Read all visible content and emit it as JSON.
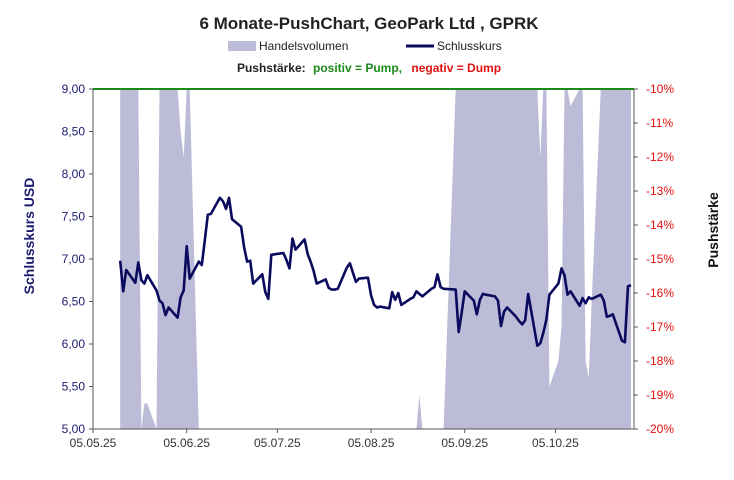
{
  "chart_data": {
    "type": "line",
    "title": "6 Monate-PushChart,  GeoPark Ltd , GPRK",
    "legend": [
      {
        "name": "Handelsvolumen",
        "color": "#bcbcd8",
        "kind": "area"
      },
      {
        "name": "Schlusskurs",
        "color": "#0a0a5e",
        "kind": "line"
      }
    ],
    "subtitle": {
      "prefix": "Pushstärke:",
      "positive": "positiv = Pump,",
      "negative": "negativ = Dump",
      "positive_color": "#1a8a1a",
      "negative_color": "#e01010"
    },
    "ylabel_left": "Schlusskurs USD",
    "ylabel_right": "Pushstärke",
    "ylim_left": [
      5.0,
      9.0
    ],
    "ylim_right": [
      -20,
      -10
    ],
    "yticks_left": [
      "9,00",
      "8,50",
      "8,00",
      "7,50",
      "7,00",
      "6,50",
      "6,00",
      "5,50",
      "5,00"
    ],
    "yticks_right": [
      "-10%",
      "-11%",
      "-12%",
      "-13%",
      "-14%",
      "-15%",
      "-16%",
      "-17%",
      "-18%",
      "-19%",
      "-20%"
    ],
    "x_start": "2025-05-05",
    "x_end": "2025-10-31",
    "xticks": [
      "05.05.25",
      "05.06.25",
      "05.07.25",
      "05.08.25",
      "05.09.25",
      "05.10.25"
    ],
    "xtick_dates": [
      "2025-05-05",
      "2025-06-05",
      "2025-07-05",
      "2025-08-05",
      "2025-09-05",
      "2025-10-05"
    ],
    "zero_line_color": "#1a8a1a",
    "series": [
      {
        "name": "Schlusskurs",
        "color": "#0a0a5e",
        "x": [
          "2025-05-14",
          "2025-05-15",
          "2025-05-16",
          "2025-05-19",
          "2025-05-20",
          "2025-05-21",
          "2025-05-22",
          "2025-05-23",
          "2025-05-26",
          "2025-05-27",
          "2025-05-28",
          "2025-05-29",
          "2025-05-30",
          "2025-06-02",
          "2025-06-03",
          "2025-06-04",
          "2025-06-05",
          "2025-06-06",
          "2025-06-09",
          "2025-06-10",
          "2025-06-11",
          "2025-06-12",
          "2025-06-13",
          "2025-06-16",
          "2025-06-17",
          "2025-06-18",
          "2025-06-19",
          "2025-06-20",
          "2025-06-23",
          "2025-06-24",
          "2025-06-25",
          "2025-06-26",
          "2025-06-27",
          "2025-06-30",
          "2025-07-01",
          "2025-07-02",
          "2025-07-03",
          "2025-07-07",
          "2025-07-08",
          "2025-07-09",
          "2025-07-10",
          "2025-07-11",
          "2025-07-14",
          "2025-07-15",
          "2025-07-16",
          "2025-07-17",
          "2025-07-18",
          "2025-07-21",
          "2025-07-22",
          "2025-07-23",
          "2025-07-24",
          "2025-07-25",
          "2025-07-28",
          "2025-07-29",
          "2025-07-30",
          "2025-07-31",
          "2025-08-01",
          "2025-08-04",
          "2025-08-05",
          "2025-08-06",
          "2025-08-07",
          "2025-08-08",
          "2025-08-11",
          "2025-08-12",
          "2025-08-13",
          "2025-08-14",
          "2025-08-15",
          "2025-08-18",
          "2025-08-19",
          "2025-08-20",
          "2025-08-21",
          "2025-08-22",
          "2025-08-25",
          "2025-08-26",
          "2025-08-27",
          "2025-08-28",
          "2025-08-29",
          "2025-09-02",
          "2025-09-03",
          "2025-09-04",
          "2025-09-05",
          "2025-09-08",
          "2025-09-09",
          "2025-09-10",
          "2025-09-11",
          "2025-09-12",
          "2025-09-15",
          "2025-09-16",
          "2025-09-17",
          "2025-09-18",
          "2025-09-19",
          "2025-09-22",
          "2025-09-23",
          "2025-09-24",
          "2025-09-25",
          "2025-09-26",
          "2025-09-29",
          "2025-09-30",
          "2025-10-01",
          "2025-10-02",
          "2025-10-03",
          "2025-10-06",
          "2025-10-07",
          "2025-10-08",
          "2025-10-09",
          "2025-10-10",
          "2025-10-13",
          "2025-10-14",
          "2025-10-15",
          "2025-10-16",
          "2025-10-17",
          "2025-10-20",
          "2025-10-21",
          "2025-10-22",
          "2025-10-23",
          "2025-10-24",
          "2025-10-27",
          "2025-10-28",
          "2025-10-29",
          "2025-10-30"
        ],
        "y": [
          6.98,
          6.62,
          6.87,
          6.72,
          6.96,
          6.75,
          6.71,
          6.81,
          6.63,
          6.51,
          6.48,
          6.34,
          6.43,
          6.31,
          6.55,
          6.63,
          7.15,
          6.77,
          6.97,
          6.93,
          7.22,
          7.52,
          7.53,
          7.72,
          7.68,
          7.59,
          7.72,
          7.47,
          7.38,
          7.14,
          6.97,
          6.98,
          6.71,
          6.82,
          6.61,
          6.53,
          7.05,
          7.07,
          6.99,
          6.89,
          7.24,
          7.11,
          7.23,
          7.06,
          6.97,
          6.86,
          6.71,
          6.76,
          6.66,
          6.64,
          6.64,
          6.65,
          6.9,
          6.95,
          6.84,
          6.73,
          6.77,
          6.78,
          6.57,
          6.46,
          6.43,
          6.44,
          6.42,
          6.61,
          6.52,
          6.6,
          6.46,
          6.53,
          6.55,
          6.62,
          6.59,
          6.56,
          6.65,
          6.67,
          6.82,
          6.67,
          6.65,
          6.64,
          6.14,
          6.37,
          6.62,
          6.51,
          6.35,
          6.52,
          6.59,
          6.58,
          6.56,
          6.51,
          6.21,
          6.38,
          6.43,
          6.32,
          6.27,
          6.23,
          6.28,
          6.59,
          5.98,
          6.01,
          6.13,
          6.29,
          6.58,
          6.71,
          6.89,
          6.81,
          6.58,
          6.62,
          6.45,
          6.54,
          6.48,
          6.55,
          6.53,
          6.58,
          6.51,
          6.32,
          6.33,
          6.35,
          6.04,
          6.02,
          6.68,
          6.69
        ]
      },
      {
        "name": "Handelsvolumen",
        "color": "#bcbcd8",
        "x": [
          "2025-05-14",
          "2025-05-15",
          "2025-05-16",
          "2025-05-19",
          "2025-05-20",
          "2025-05-21",
          "2025-05-22",
          "2025-05-23",
          "2025-05-26",
          "2025-05-27",
          "2025-05-28",
          "2025-05-29",
          "2025-05-30",
          "2025-06-02",
          "2025-06-03",
          "2025-06-04",
          "2025-06-05",
          "2025-06-06",
          "2025-06-09",
          "2025-06-10",
          "2025-06-11",
          "2025-06-12",
          "2025-06-13",
          "2025-06-16",
          "2025-06-17",
          "2025-06-18",
          "2025-06-19",
          "2025-06-20",
          "2025-06-23",
          "2025-06-24",
          "2025-06-25",
          "2025-06-26",
          "2025-06-27",
          "2025-06-30",
          "2025-07-01",
          "2025-07-02",
          "2025-07-03",
          "2025-07-07",
          "2025-07-08",
          "2025-07-09",
          "2025-07-10",
          "2025-07-11",
          "2025-07-14",
          "2025-07-15",
          "2025-07-16",
          "2025-07-17",
          "2025-07-18",
          "2025-07-21",
          "2025-07-22",
          "2025-07-23",
          "2025-07-24",
          "2025-07-25",
          "2025-07-28",
          "2025-07-29",
          "2025-07-30",
          "2025-07-31",
          "2025-08-01",
          "2025-08-04",
          "2025-08-05",
          "2025-08-06",
          "2025-08-07",
          "2025-08-08",
          "2025-08-11",
          "2025-08-12",
          "2025-08-13",
          "2025-08-14",
          "2025-08-15",
          "2025-08-18",
          "2025-08-19",
          "2025-08-20",
          "2025-08-21",
          "2025-08-22",
          "2025-08-25",
          "2025-08-26",
          "2025-08-27",
          "2025-08-28",
          "2025-08-29",
          "2025-09-02",
          "2025-09-03",
          "2025-09-04",
          "2025-09-05",
          "2025-09-08",
          "2025-09-09",
          "2025-09-10",
          "2025-09-11",
          "2025-09-12",
          "2025-09-15",
          "2025-09-16",
          "2025-09-17",
          "2025-09-18",
          "2025-09-19",
          "2025-09-22",
          "2025-09-23",
          "2025-09-24",
          "2025-09-25",
          "2025-09-26",
          "2025-09-29",
          "2025-09-30",
          "2025-10-01",
          "2025-10-02",
          "2025-10-03",
          "2025-10-06",
          "2025-10-07",
          "2025-10-08",
          "2025-10-09",
          "2025-10-10",
          "2025-10-13",
          "2025-10-14",
          "2025-10-15",
          "2025-10-16",
          "2025-10-17",
          "2025-10-20",
          "2025-10-21",
          "2025-10-22",
          "2025-10-23",
          "2025-10-24",
          "2025-10-27",
          "2025-10-28",
          "2025-10-29",
          "2025-10-30"
        ],
        "y": [
          9.0,
          9.0,
          9.0,
          9.0,
          9.0,
          5.0,
          5.3,
          5.3,
          5.0,
          9.0,
          9.0,
          9.0,
          9.0,
          9.0,
          8.5,
          8.2,
          9.0,
          9.0,
          5.0,
          5.0,
          5.0,
          5.0,
          5.0,
          5.0,
          5.0,
          5.0,
          5.0,
          5.0,
          5.0,
          5.0,
          5.0,
          5.0,
          5.0,
          5.0,
          5.0,
          5.0,
          5.0,
          5.0,
          5.0,
          5.0,
          5.0,
          5.0,
          5.0,
          5.0,
          5.0,
          5.0,
          5.0,
          5.0,
          5.0,
          5.0,
          5.0,
          5.0,
          5.0,
          5.0,
          5.0,
          5.0,
          5.0,
          5.0,
          5.0,
          5.0,
          5.0,
          5.0,
          5.0,
          5.0,
          5.0,
          5.0,
          5.0,
          5.0,
          5.0,
          5.0,
          5.4,
          5.0,
          5.0,
          5.0,
          5.0,
          5.0,
          5.0,
          9.0,
          9.0,
          9.0,
          9.0,
          9.0,
          9.0,
          9.0,
          9.0,
          9.0,
          9.0,
          9.0,
          9.0,
          9.0,
          9.0,
          9.0,
          9.0,
          9.0,
          9.0,
          9.0,
          9.0,
          8.2,
          9.0,
          9.0,
          5.5,
          5.8,
          6.2,
          9.0,
          9.0,
          8.8,
          9.0,
          9.0,
          5.8,
          5.6,
          6.5,
          9.0,
          9.0,
          9.0,
          9.0,
          9.0,
          9.0,
          9.0,
          9.0,
          9.0
        ]
      }
    ]
  }
}
